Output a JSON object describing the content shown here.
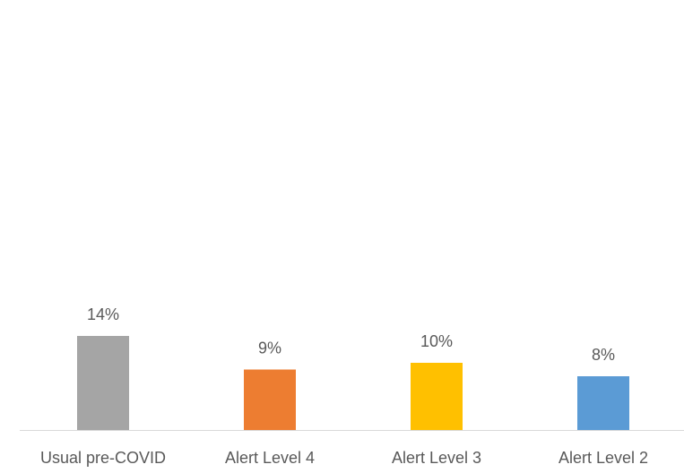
{
  "chart_data": {
    "type": "bar",
    "categories": [
      "Usual pre-COVID",
      "Alert Level 4",
      "Alert Level 3",
      "Alert Level 2"
    ],
    "values": [
      14,
      9,
      10,
      8
    ],
    "value_labels": [
      "14%",
      "9%",
      "10%",
      "8%"
    ],
    "colors": [
      "#a5a5a5",
      "#ed7d31",
      "#ffc000",
      "#5b9bd5"
    ],
    "ylim": [
      0,
      60
    ],
    "grid": false
  }
}
